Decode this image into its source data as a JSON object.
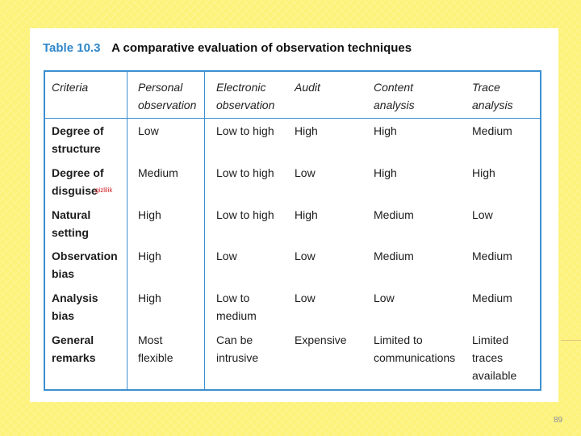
{
  "caption": {
    "number": "Table 10.3",
    "title": "A comparative evaluation of observation techniques"
  },
  "headers": [
    "Criteria",
    "Personal\nobservation",
    "Electronic\nobservation",
    "Audit",
    "Content\nanalysis",
    "Trace\nanalysis"
  ],
  "rows": [
    [
      "Degree of\nstructure",
      "Low",
      "Low to high",
      "High",
      "High",
      "Medium"
    ],
    [
      "Degree of\ndisguise",
      "Medium",
      "Low to high",
      "Low",
      "High",
      "High"
    ],
    [
      "Natural\nsetting",
      "High",
      "Low to high",
      "High",
      "Medium",
      "Low"
    ],
    [
      "Observation\nbias",
      "High",
      "Low",
      "Low",
      "Medium",
      "Medium"
    ],
    [
      "Analysis\nbias",
      "High",
      "Low to\nmedium",
      "Low",
      "Low",
      "Medium"
    ],
    [
      "General\nremarks",
      "Most\nflexible",
      "Can be\nintrusive",
      "Expensive",
      "Limited to\ncommunications",
      "Limited\ntraces\navailable"
    ]
  ],
  "annotation": "gizlilik",
  "page_number": "89",
  "colors": {
    "background": "#fdf27a",
    "table_rule": "#3d8fd0",
    "caption_number": "#2e86c9",
    "annotation": "#d0232a"
  }
}
